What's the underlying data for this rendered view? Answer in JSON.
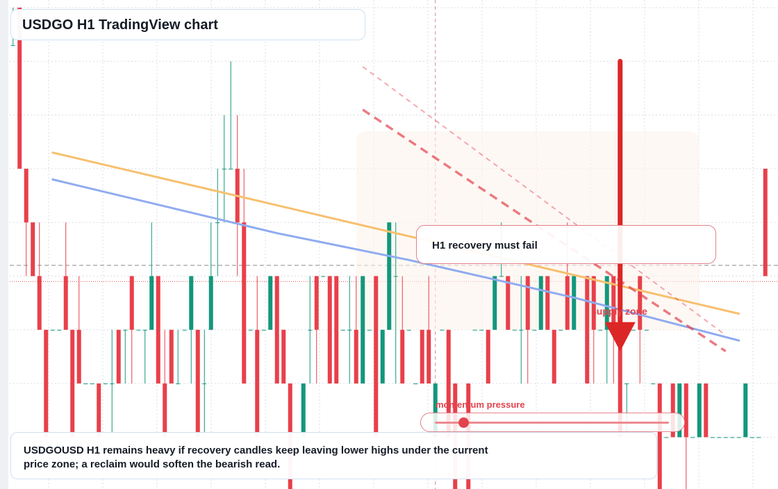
{
  "header": {
    "title": "USDGO H1 TradingView chart"
  },
  "callout": {
    "text": "H1 recovery must fail"
  },
  "supply_label": "supply zone",
  "momentum": {
    "label": "momentum pressure",
    "level": 0.12
  },
  "note": {
    "text": "USDGOUSD H1 remains heavy if recovery candles keep leaving lower highs under the current price zone; a reclaim would soften the bearish read."
  },
  "colors": {
    "up": "#12977c",
    "down": "#e8404a",
    "ema_fast": "#f7c06e",
    "ema_slow": "#8fabf0",
    "trend": "#e2434d",
    "arrow": "#dc2626",
    "grid": "#d9dde5"
  },
  "chart_data": {
    "type": "candlestick",
    "title": "USDGO H1 TradingView chart",
    "xlabel": "",
    "ylabel": "",
    "ylim": [
      0,
      9
    ],
    "grid": true,
    "price_line": 4.2,
    "last_line": 3.9,
    "candles": [
      [
        8.3,
        9,
        8.3,
        8.3
      ],
      [
        9,
        9,
        6,
        6
      ],
      [
        6,
        6,
        4,
        5
      ],
      [
        5,
        5,
        4,
        4
      ],
      [
        4,
        5,
        3,
        3
      ],
      [
        3,
        3,
        1,
        1
      ],
      [
        3,
        3,
        3,
        3
      ],
      [
        3,
        3,
        3,
        3
      ],
      [
        4,
        5,
        3,
        3
      ],
      [
        3,
        3,
        1,
        1
      ],
      [
        3,
        4,
        2,
        2
      ],
      [
        2,
        2,
        2,
        2
      ],
      [
        2,
        2,
        2,
        2
      ],
      [
        2,
        2,
        1,
        1
      ],
      [
        2,
        2,
        2,
        2
      ],
      [
        2,
        3,
        1,
        2
      ],
      [
        3,
        3,
        2,
        2
      ],
      [
        3,
        3,
        2,
        3
      ],
      [
        4,
        4,
        2,
        3
      ],
      [
        3,
        3,
        3,
        3
      ],
      [
        3,
        3,
        2,
        3
      ],
      [
        3,
        5,
        3,
        4
      ],
      [
        4,
        4,
        2,
        2
      ],
      [
        2,
        3,
        1,
        1
      ],
      [
        3,
        3,
        2,
        2
      ],
      [
        2,
        3,
        2,
        2
      ],
      [
        3,
        3,
        3,
        3
      ],
      [
        3,
        4,
        2,
        4
      ],
      [
        3,
        3,
        1,
        1
      ],
      [
        2,
        3,
        1,
        2
      ],
      [
        3,
        5,
        3,
        4
      ],
      [
        5,
        6,
        4,
        5
      ],
      [
        6,
        7,
        5,
        6
      ],
      [
        6,
        8,
        6,
        6
      ],
      [
        6,
        7,
        4,
        5
      ],
      [
        5,
        6,
        2,
        2
      ],
      [
        3,
        3,
        3,
        3
      ],
      [
        3,
        4,
        1,
        1
      ],
      [
        3,
        3,
        3,
        3
      ],
      [
        3,
        4,
        3,
        4
      ],
      [
        4,
        4,
        2,
        2
      ],
      [
        3,
        3,
        2,
        2
      ],
      [
        2,
        2,
        0,
        0
      ],
      [
        1,
        1,
        1,
        1
      ],
      [
        1,
        2,
        1,
        2
      ],
      [
        3,
        4,
        2,
        3
      ],
      [
        4,
        4,
        2,
        3
      ],
      [
        4,
        4,
        4,
        4
      ],
      [
        4,
        4,
        2,
        2
      ],
      [
        4,
        4,
        2,
        2
      ],
      [
        3,
        3,
        3,
        3
      ],
      [
        3,
        4,
        2,
        3
      ],
      [
        3,
        4,
        2,
        2
      ],
      [
        2,
        4,
        2,
        4
      ],
      [
        3,
        3,
        3,
        3
      ],
      [
        4,
        4,
        1,
        1
      ],
      [
        2,
        3,
        2,
        3
      ],
      [
        3,
        5,
        3,
        5
      ],
      [
        4,
        5,
        2,
        4
      ],
      [
        3,
        4,
        2,
        2
      ],
      [
        3,
        3,
        3,
        3
      ],
      [
        2,
        2,
        2,
        2
      ],
      [
        3,
        3,
        2,
        2
      ],
      [
        3,
        4,
        2,
        2
      ],
      [
        1,
        2,
        1,
        2
      ],
      [
        3,
        3,
        3,
        3
      ],
      [
        3,
        3,
        1,
        1
      ],
      [
        2,
        2,
        0,
        0
      ],
      [
        1,
        1,
        1,
        1
      ],
      [
        2,
        2,
        0,
        0
      ],
      [
        3,
        3,
        3,
        3
      ],
      [
        3,
        3,
        3,
        3
      ],
      [
        3,
        3,
        2,
        2
      ],
      [
        3,
        4,
        3,
        4
      ],
      [
        4,
        5,
        4,
        4
      ],
      [
        4,
        4,
        3,
        3
      ],
      [
        3,
        3,
        3,
        3
      ],
      [
        3,
        4,
        2,
        3
      ],
      [
        4,
        4,
        2,
        3
      ],
      [
        3,
        3,
        3,
        3
      ],
      [
        3,
        4,
        3,
        4
      ],
      [
        4,
        4,
        3,
        3
      ],
      [
        3,
        3,
        2,
        2
      ],
      [
        3,
        3,
        3,
        3
      ],
      [
        4,
        5,
        3,
        3
      ],
      [
        3,
        4,
        3,
        4
      ],
      [
        4,
        4,
        4,
        4
      ],
      [
        4,
        4,
        2,
        2
      ],
      [
        4,
        4,
        2,
        3
      ],
      [
        3,
        3,
        3,
        3
      ],
      [
        3,
        4,
        2,
        4
      ],
      [
        4,
        4,
        2,
        3
      ],
      [
        3,
        3,
        1,
        1
      ],
      [
        2,
        2,
        1,
        2
      ],
      [
        3,
        3,
        3,
        3
      ],
      [
        4,
        4,
        2,
        3
      ],
      [
        3,
        3,
        3,
        3
      ],
      [
        2,
        2,
        2,
        2
      ],
      [
        2,
        2,
        0,
        0
      ],
      [
        1,
        1,
        1,
        1
      ],
      [
        2,
        2,
        1,
        1
      ],
      [
        1,
        2,
        1,
        2
      ],
      [
        2,
        2,
        0,
        1
      ],
      [
        1,
        1,
        1,
        1
      ],
      [
        1,
        2,
        1,
        2
      ],
      [
        2,
        2,
        1,
        1
      ],
      [
        1,
        1,
        1,
        1
      ],
      [
        1,
        1,
        1,
        1
      ],
      [
        1,
        1,
        1,
        1
      ],
      [
        1,
        1,
        1,
        1
      ],
      [
        1,
        1,
        1,
        1
      ],
      [
        1,
        2,
        1,
        2
      ],
      [
        1,
        1,
        1,
        1
      ],
      [
        1,
        1,
        1,
        1
      ],
      [
        6,
        6,
        4,
        4
      ]
    ],
    "ema_fast": [
      [
        6,
        6.3
      ],
      [
        110,
        3.3
      ]
    ],
    "ema_slow": [
      [
        6,
        5.8
      ],
      [
        40,
        4.8
      ],
      [
        60,
        4.3
      ],
      [
        85,
        3.6
      ],
      [
        110,
        2.8
      ]
    ],
    "trendlines": [
      {
        "from": [
          53,
          7.9
        ],
        "to": [
          108,
          2.9
        ],
        "style": "light-dashed"
      },
      {
        "from": [
          53,
          7.1
        ],
        "to": [
          108,
          2.6
        ],
        "style": "dashed"
      }
    ],
    "supply_zone": [
      52,
      104,
      3.0,
      6.7
    ],
    "arrow": {
      "x": 92,
      "from": 8,
      "to": 2.6
    },
    "crosshair_x": 64
  }
}
